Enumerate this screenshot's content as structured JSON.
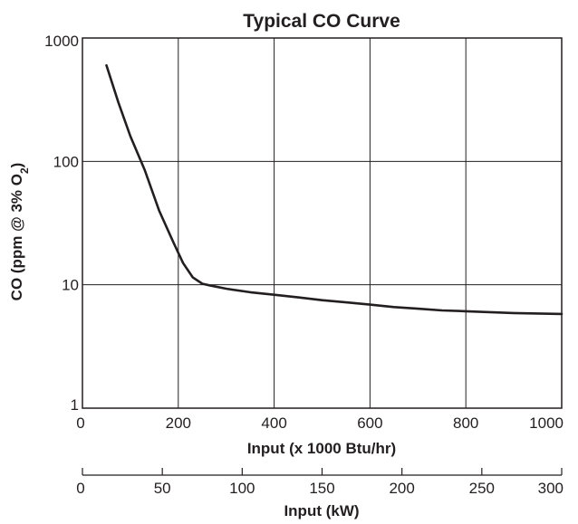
{
  "chart_data": {
    "type": "line",
    "title": "Typical CO Curve",
    "xlabel": "Input (x 1000 Btu/hr)",
    "ylabel": {
      "main": "CO (ppm @ 3% O",
      "subscript": "2",
      "close": ")"
    },
    "y_scale": "log",
    "xlim": [
      0,
      1000
    ],
    "ylim": [
      1,
      1000
    ],
    "x_ticks": [
      0,
      200,
      400,
      600,
      800,
      1000
    ],
    "y_ticks": [
      1,
      10,
      100,
      1000
    ],
    "grid": true,
    "secondary_x_axis": {
      "label": "Input (kW)",
      "range": [
        0,
        300
      ],
      "ticks": [
        0,
        50,
        100,
        150,
        200,
        250,
        300
      ]
    },
    "series": [
      {
        "x": [
          50,
          75,
          100,
          130,
          160,
          190,
          210,
          230,
          250,
          265,
          300,
          350,
          400,
          450,
          500,
          550,
          600,
          650,
          700,
          750,
          800,
          850,
          900,
          950,
          1000
        ],
        "y": [
          600,
          300,
          160,
          85,
          40,
          22,
          15,
          11.5,
          10.2,
          9.9,
          9.3,
          8.7,
          8.3,
          7.9,
          7.5,
          7.2,
          6.9,
          6.6,
          6.4,
          6.2,
          6.1,
          6.0,
          5.9,
          5.85,
          5.8
        ]
      }
    ],
    "colors": {
      "line": "#231f20",
      "grid": "#231f20",
      "text": "#231f20"
    }
  }
}
